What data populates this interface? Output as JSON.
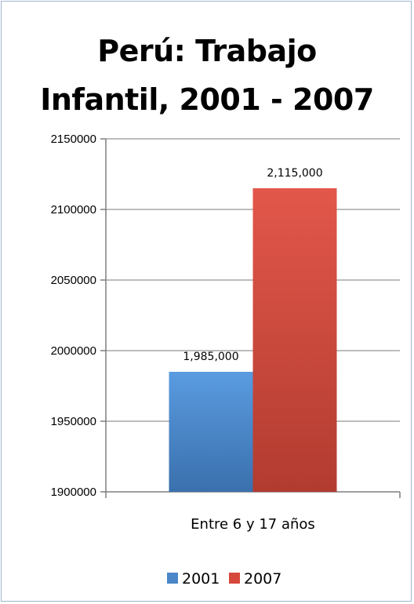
{
  "chart_data": {
    "type": "bar",
    "title_lines": [
      "Perú: Trabajo",
      "Infantil, 2001 - 2007"
    ],
    "categories": [
      "Entre 6 y 17 años"
    ],
    "series": [
      {
        "name": "2001",
        "values": [
          1985000
        ],
        "label": "1,985,000",
        "color": "#4a86c8"
      },
      {
        "name": "2007",
        "values": [
          2115000
        ],
        "label": "2,115,000",
        "color": "#d6483c"
      }
    ],
    "ylim": [
      1900000,
      2150000
    ],
    "yticks": [
      "1900000",
      "1950000",
      "2000000",
      "2050000",
      "2100000",
      "2150000"
    ],
    "grid": true,
    "legend_position": "bottom"
  }
}
